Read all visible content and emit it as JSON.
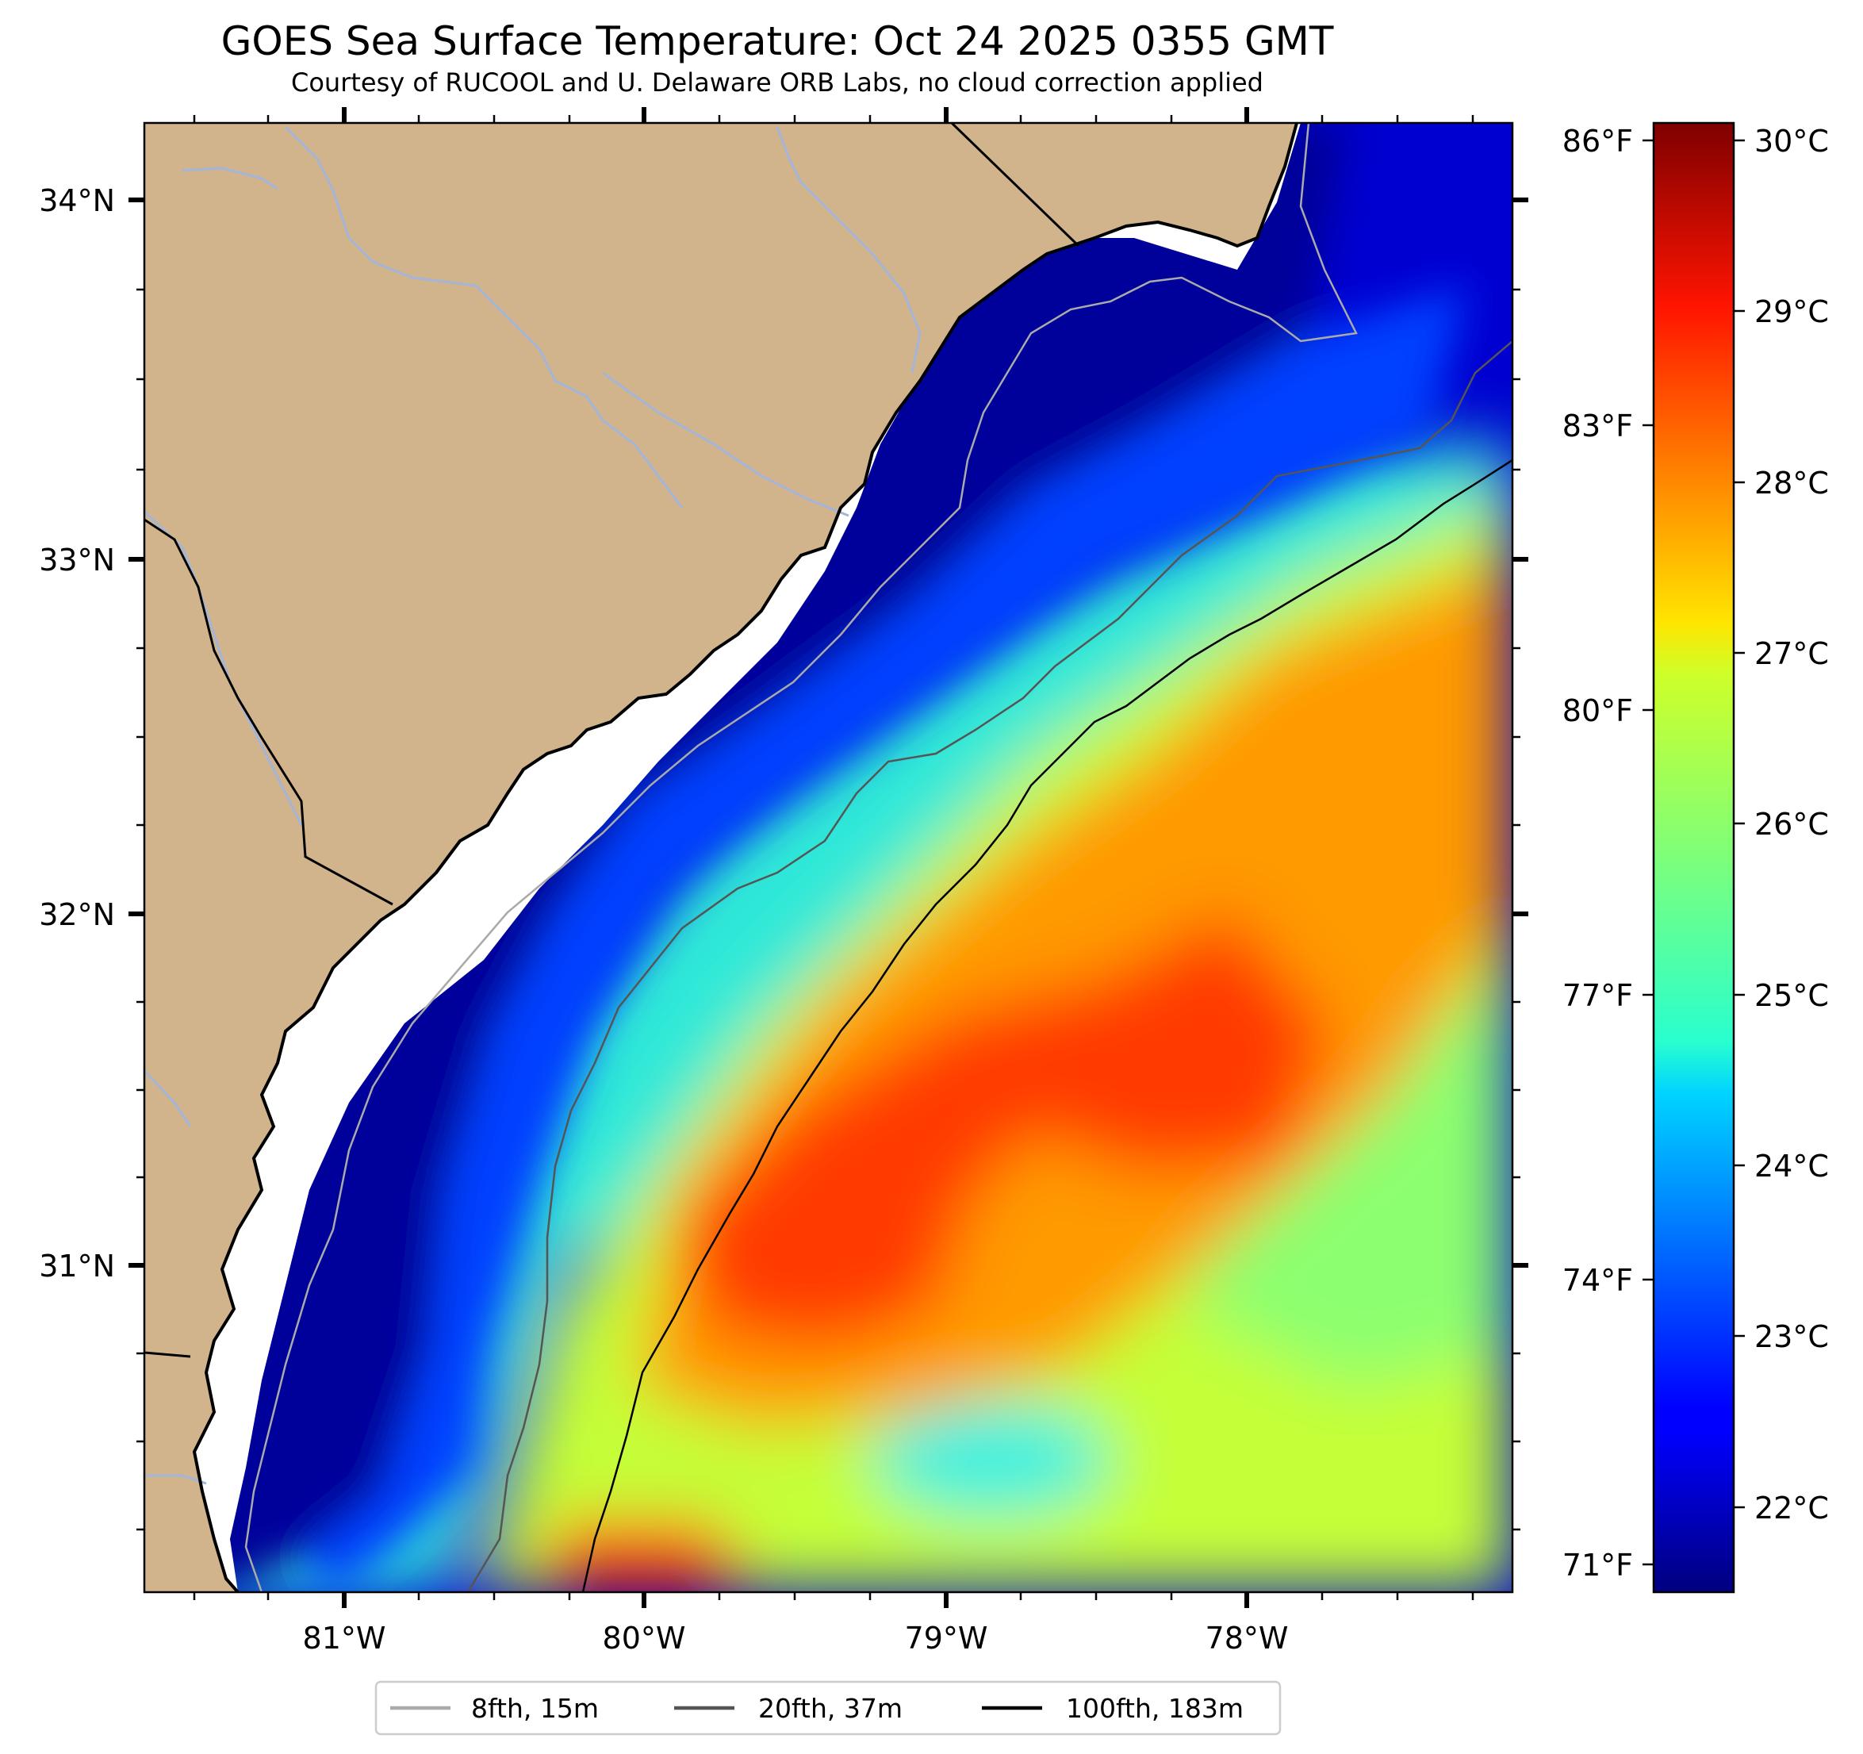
{
  "title": "GOES Sea Surface Temperature: Oct 24 2025 0355 GMT",
  "subtitle": "Courtesy of RUCOOL and U. Delaware ORB Labs, no cloud correction applied",
  "map": {
    "lon_range": [
      -81.67,
      -77.13
    ],
    "lat_range": [
      30.08,
      34.22
    ],
    "lon_ticks": [
      "81°W",
      "80°W",
      "79°W",
      "78°W"
    ],
    "lat_ticks": [
      "34°N",
      "33°N",
      "32°N",
      "31°N"
    ],
    "colors": {
      "land": "#d2b48c",
      "river": "#a3b5d9",
      "coast": "#000000",
      "no_data": "#ffffff"
    }
  },
  "colorbar": {
    "celsius": {
      "range": [
        21.5,
        30.1
      ],
      "labels": [
        "30°C",
        "29°C",
        "28°C",
        "27°C",
        "26°C",
        "25°C",
        "24°C",
        "23°C",
        "22°C"
      ]
    },
    "fahrenheit": {
      "labels": [
        "86°F",
        "83°F",
        "80°F",
        "77°F",
        "74°F",
        "71°F"
      ]
    },
    "colormap": "jet"
  },
  "legend": {
    "items": [
      {
        "label": "8fth, 15m",
        "color": "#aaaaaa"
      },
      {
        "label": "20fth, 37m",
        "color": "#555555"
      },
      {
        "label": "100fth, 183m",
        "color": "#000000"
      }
    ]
  }
}
